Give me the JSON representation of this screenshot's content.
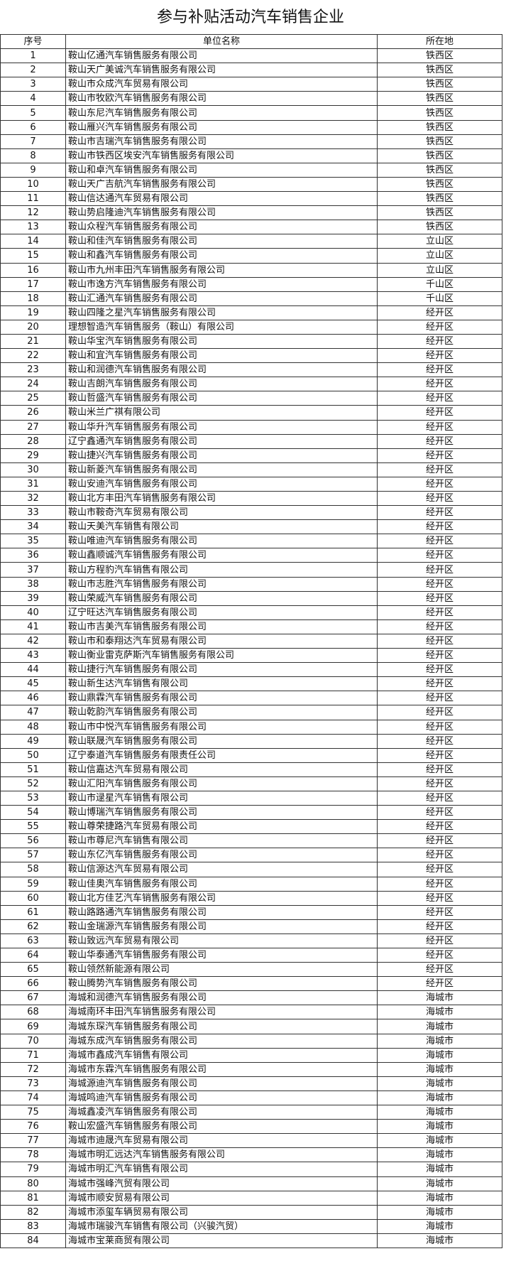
{
  "title": "参与补贴活动汽车销售企业",
  "columns": [
    "序号",
    "单位名称",
    "所在地"
  ],
  "rows": [
    [
      "1",
      "鞍山亿通汽车销售服务有限公司",
      "铁西区"
    ],
    [
      "2",
      "鞍山天广美诚汽车销售服务有限公司",
      "铁西区"
    ],
    [
      "3",
      "鞍山市众成汽车贸易有限公司",
      "铁西区"
    ],
    [
      "4",
      "鞍山市牧欧汽车销售服务有限公司",
      "铁西区"
    ],
    [
      "5",
      "鞍山东尼汽车销售服务有限公司",
      "铁西区"
    ],
    [
      "6",
      "鞍山雁兴汽车销售服务有限公司",
      "铁西区"
    ],
    [
      "7",
      "鞍山市吉瑞汽车销售服务有限公司",
      "铁西区"
    ],
    [
      "8",
      "鞍山市铁西区埃安汽车销售服务有限公司",
      "铁西区"
    ],
    [
      "9",
      "鞍山和卓汽车销售服务有限公司",
      "铁西区"
    ],
    [
      "10",
      "鞍山天广吉航汽车销售服务有限公司",
      "铁西区"
    ],
    [
      "11",
      "鞍山信达通汽车贸易有限公司",
      "铁西区"
    ],
    [
      "12",
      "鞍山势启隆迪汽车销售服务有限公司",
      "铁西区"
    ],
    [
      "13",
      "鞍山众程汽车销售服务有限公司",
      "铁西区"
    ],
    [
      "14",
      "鞍山和佳汽车销售服务有限公司",
      "立山区"
    ],
    [
      "15",
      "鞍山和鑫汽车销售服务有限公司",
      "立山区"
    ],
    [
      "16",
      "鞍山市九州丰田汽车销售服务有限公司",
      "立山区"
    ],
    [
      "17",
      "鞍山市逸方汽车销售服务有限公司",
      "千山区"
    ],
    [
      "18",
      "鞍山汇通汽车销售服务有限公司",
      "千山区"
    ],
    [
      "19",
      "鞍山四隆之星汽车销售服务有限公司",
      "经开区"
    ],
    [
      "20",
      "理想智造汽车销售服务（鞍山）有限公司",
      "经开区"
    ],
    [
      "21",
      "鞍山华宝汽车销售服务有限公司",
      "经开区"
    ],
    [
      "22",
      "鞍山和宜汽车销售服务有限公司",
      "经开区"
    ],
    [
      "23",
      "鞍山和润德汽车销售服务有限公司",
      "经开区"
    ],
    [
      "24",
      "鞍山吉朗汽车销售服务有限公司",
      "经开区"
    ],
    [
      "25",
      "鞍山哲盛汽车销售服务有限公司",
      "经开区"
    ],
    [
      "26",
      "鞍山米兰广祺有限公司",
      "经开区"
    ],
    [
      "27",
      "鞍山华升汽车销售服务有限公司",
      "经开区"
    ],
    [
      "28",
      "辽宁鑫通汽车销售服务有限公司",
      "经开区"
    ],
    [
      "29",
      "鞍山捷兴汽车销售服务有限公司",
      "经开区"
    ],
    [
      "30",
      "鞍山新菱汽车销售服务有限公司",
      "经开区"
    ],
    [
      "31",
      "鞍山安迪汽车销售服务有限公司",
      "经开区"
    ],
    [
      "32",
      "鞍山北方丰田汽车销售服务有限公司",
      "经开区"
    ],
    [
      "33",
      "鞍山市鞍奇汽车贸易有限公司",
      "经开区"
    ],
    [
      "34",
      "鞍山天美汽车销售有限公司",
      "经开区"
    ],
    [
      "35",
      "鞍山唯迪汽车销售服务有限公司",
      "经开区"
    ],
    [
      "36",
      "鞍山鑫顺诚汽车销售服务有限公司",
      "经开区"
    ],
    [
      "37",
      "鞍山方程豹汽车销售有限公司",
      "经开区"
    ],
    [
      "38",
      "鞍山市志胜汽车销售服务有限公司",
      "经开区"
    ],
    [
      "39",
      "鞍山荣威汽车销售服务有限公司",
      "经开区"
    ],
    [
      "40",
      "辽宁旺达汽车销售服务有限公司",
      "经开区"
    ],
    [
      "41",
      "鞍山市吉美汽车销售服务有限公司",
      "经开区"
    ],
    [
      "42",
      "鞍山市和泰翔达汽车贸易有限公司",
      "经开区"
    ],
    [
      "43",
      "鞍山衡业雷克萨斯汽车销售服务有限公司",
      "经开区"
    ],
    [
      "44",
      "鞍山捷行汽车销售服务有限公司",
      "经开区"
    ],
    [
      "45",
      "鞍山新生达汽车销售有限公司",
      "经开区"
    ],
    [
      "46",
      "鞍山鼎霖汽车销售服务有限公司",
      "经开区"
    ],
    [
      "47",
      "鞍山乾韵汽车销售服务有限公司",
      "经开区"
    ],
    [
      "48",
      "鞍山市中悦汽车销售服务有限公司",
      "经开区"
    ],
    [
      "49",
      "鞍山联晟汽车销售服务有限公司",
      "经开区"
    ],
    [
      "50",
      "辽宁泰道汽车销售服务有限责任公司",
      "经开区"
    ],
    [
      "51",
      "鞍山信嘉达汽车贸易有限公司",
      "经开区"
    ],
    [
      "52",
      "鞍山汇阳汽车销售服务有限公司",
      "经开区"
    ],
    [
      "53",
      "鞍山市逯星汽车销售有限公司",
      "经开区"
    ],
    [
      "54",
      "鞍山博瑞汽车销售服务有限公司",
      "经开区"
    ],
    [
      "55",
      "鞍山尊荣捷路汽车贸易有限公司",
      "经开区"
    ],
    [
      "56",
      "鞍山市尊尼汽车销售有限公司",
      "经开区"
    ],
    [
      "57",
      "鞍山东亿汽车销售服务有限公司",
      "经开区"
    ],
    [
      "58",
      "鞍山信源达汽车贸易有限公司",
      "经开区"
    ],
    [
      "59",
      "鞍山佳奥汽车销售服务有限公司",
      "经开区"
    ],
    [
      "60",
      "鞍山北方佳艺汽车销售服务有限公司",
      "经开区"
    ],
    [
      "61",
      "鞍山路路通汽车销售服务有限公司",
      "经开区"
    ],
    [
      "62",
      "鞍山金瑞源汽车销售服务有限公司",
      "经开区"
    ],
    [
      "63",
      "鞍山致远汽车贸易有限公司",
      "经开区"
    ],
    [
      "64",
      "鞍山华泰通汽车销售服务有限公司",
      "经开区"
    ],
    [
      "65",
      "鞍山领然新能源有限公司",
      "经开区"
    ],
    [
      "66",
      "鞍山腾势汽车销售服务有限公司",
      "经开区"
    ],
    [
      "67",
      "海城和润德汽车销售服务有限公司",
      "海城市"
    ],
    [
      "68",
      "海城南环丰田汽车销售服务有限公司",
      "海城市"
    ],
    [
      "69",
      "海城东琛汽车销售服务有限公司",
      "海城市"
    ],
    [
      "70",
      "海城东成汽车销售服务有限公司",
      "海城市"
    ],
    [
      "71",
      "海城市鑫成汽车销售有限公司",
      "海城市"
    ],
    [
      "72",
      "海城市东霖汽车销售服务有限公司",
      "海城市"
    ],
    [
      "73",
      "海城源迪汽车销售服务有限公司",
      "海城市"
    ],
    [
      "74",
      "海城鸣迪汽车销售服务有限公司",
      "海城市"
    ],
    [
      "75",
      "海城鑫凌汽车销售服务有限公司",
      "海城市"
    ],
    [
      "76",
      "鞍山宏盛汽车销售服务有限公司",
      "海城市"
    ],
    [
      "77",
      "海城市迪晟汽车贸易有限公司",
      "海城市"
    ],
    [
      "78",
      "海城市明汇远达汽车销售服务有限公司",
      "海城市"
    ],
    [
      "79",
      "海城市明汇汽车销售有限公司",
      "海城市"
    ],
    [
      "80",
      "海城市强峰汽贸有限公司",
      "海城市"
    ],
    [
      "81",
      "海城市顺安贸易有限公司",
      "海城市"
    ],
    [
      "82",
      "海城市添玺车辆贸易有限公司",
      "海城市"
    ],
    [
      "83",
      "海城市瑞骏汽车销售有限公司（兴骏汽贸）",
      "海城市"
    ],
    [
      "84",
      "海城市宝莱商贸有限公司",
      "海城市"
    ]
  ]
}
